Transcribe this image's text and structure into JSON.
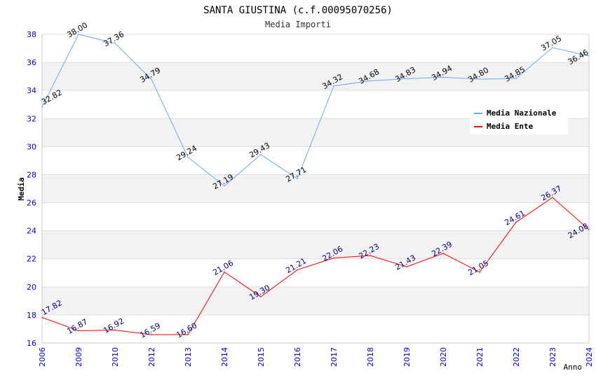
{
  "chart_data": {
    "type": "line",
    "title": "SANTA GIUSTINA (c.f.00095070256)",
    "subtitle": "Media Importi",
    "xlabel": "Anno",
    "ylabel": "Media",
    "ylim": [
      16,
      38
    ],
    "yticks": [
      "16",
      "18",
      "20",
      "22",
      "24",
      "26",
      "28",
      "30",
      "32",
      "34",
      "36",
      "38"
    ],
    "categories": [
      "2006",
      "2009",
      "2010",
      "2012",
      "2013",
      "2014",
      "2015",
      "2016",
      "2017",
      "2018",
      "2019",
      "2020",
      "2021",
      "2022",
      "2023",
      "2024"
    ],
    "series": [
      {
        "name": "Media Nazionale",
        "color": "#6aaaf0",
        "label_color": "#000000",
        "values": [
          32.82,
          38.0,
          37.36,
          34.79,
          29.24,
          27.19,
          29.43,
          27.71,
          34.32,
          34.68,
          34.83,
          34.94,
          34.8,
          34.85,
          37.05,
          36.46
        ],
        "labels": [
          "32.82",
          "38.00",
          "37.36",
          "34.79",
          "29.24",
          "27.19",
          "29.43",
          "27.71",
          "34.32",
          "34.68",
          "34.83",
          "34.94",
          "34.80",
          "34.85",
          "37.05",
          "36.46"
        ]
      },
      {
        "name": "Media Ente",
        "color": "#ff0000",
        "label_color": "#000080",
        "values": [
          17.82,
          16.87,
          16.92,
          16.59,
          16.6,
          21.06,
          19.3,
          21.21,
          22.06,
          22.23,
          21.43,
          22.39,
          21.05,
          24.61,
          26.37,
          24.08
        ],
        "labels": [
          "17.82",
          "16.87",
          "16.92",
          "16.59",
          "16.60",
          "21.06",
          "19.30",
          "21.21",
          "22.06",
          "22.23",
          "21.43",
          "22.39",
          "21.05",
          "24.61",
          "26.37",
          "24.08"
        ]
      }
    ],
    "grid": true,
    "legend": "top-right"
  }
}
